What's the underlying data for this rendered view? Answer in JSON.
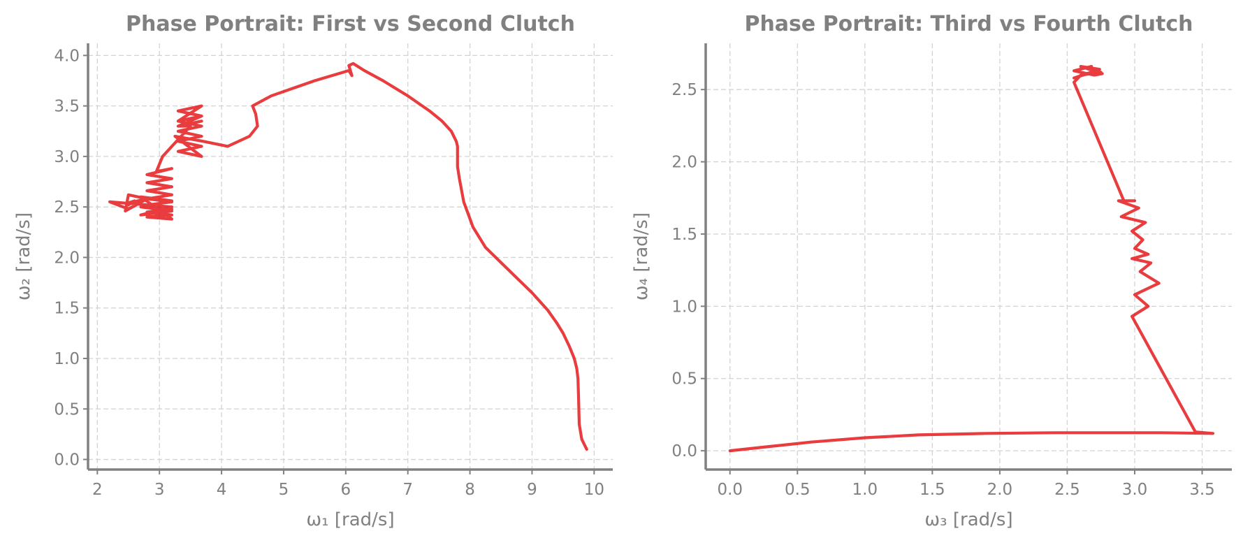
{
  "chart_data": [
    {
      "type": "line",
      "title": "Phase Portrait: First vs Second Clutch",
      "xlabel": "ω₁ [rad/s]",
      "ylabel": "ω₂ [rad/s]",
      "xlim": [
        1.85,
        10.3
      ],
      "ylim": [
        -0.1,
        4.12
      ],
      "xticks": [
        "2",
        "3",
        "4",
        "5",
        "6",
        "7",
        "8",
        "9",
        "10"
      ],
      "xtick_values": [
        2,
        3,
        4,
        5,
        6,
        7,
        8,
        9,
        10
      ],
      "yticks": [
        "0.0",
        "0.5",
        "1.0",
        "1.5",
        "2.0",
        "2.5",
        "3.0",
        "3.5",
        "4.0"
      ],
      "ytick_values": [
        0,
        0.5,
        1,
        1.5,
        2,
        2.5,
        3,
        3.5,
        4
      ],
      "grid": true,
      "color": "#e41a1c",
      "series": [
        {
          "x": [
            9.88,
            9.8,
            9.76,
            9.75,
            9.74,
            9.72,
            9.68,
            9.6,
            9.5,
            9.4,
            9.25,
            9.0,
            8.75,
            8.5,
            8.25,
            8.05,
            7.9,
            7.83,
            7.8,
            7.8,
            7.8,
            7.78,
            7.7,
            7.55,
            7.35,
            7.0,
            6.6,
            6.3,
            6.12,
            6.05,
            6.1,
            6.05,
            5.5,
            4.8,
            4.5,
            4.55,
            4.58,
            4.45,
            4.1,
            3.7,
            3.25,
            3.68,
            3.3,
            3.68,
            3.3,
            3.68,
            3.3,
            3.68,
            3.3,
            3.68,
            3.3,
            3.68,
            3.3,
            3.68,
            3.3,
            3.68,
            3.3,
            3.5,
            3.2,
            3.05,
            2.95,
            3.2,
            2.8,
            3.2,
            2.8,
            3.2,
            2.8,
            3.2,
            2.8,
            3.2,
            2.8,
            3.2,
            2.8,
            3.2,
            2.8,
            3.2,
            2.7,
            3.2,
            2.7,
            3.2,
            2.7,
            3.2,
            2.2,
            2.5,
            2.8,
            2.5,
            2.45,
            2.8,
            2.5,
            2.6,
            2.5
          ],
          "y": [
            0.1,
            0.2,
            0.35,
            0.6,
            0.8,
            0.9,
            1.0,
            1.12,
            1.25,
            1.35,
            1.48,
            1.65,
            1.8,
            1.95,
            2.1,
            2.3,
            2.55,
            2.78,
            2.9,
            3.0,
            3.1,
            3.15,
            3.25,
            3.35,
            3.45,
            3.6,
            3.75,
            3.85,
            3.92,
            3.9,
            3.8,
            3.85,
            3.75,
            3.6,
            3.5,
            3.42,
            3.3,
            3.2,
            3.1,
            3.15,
            3.2,
            3.0,
            3.05,
            3.1,
            3.15,
            3.2,
            3.25,
            3.3,
            3.35,
            3.4,
            3.45,
            3.5,
            3.35,
            3.4,
            3.3,
            3.35,
            3.3,
            3.3,
            3.1,
            3.0,
            2.85,
            2.88,
            2.82,
            2.78,
            2.74,
            2.7,
            2.66,
            2.62,
            2.58,
            2.55,
            2.52,
            2.48,
            2.45,
            2.42,
            2.4,
            2.38,
            2.6,
            2.56,
            2.5,
            2.46,
            2.42,
            2.5,
            2.55,
            2.48,
            2.58,
            2.62,
            2.46,
            2.58,
            2.54,
            2.56,
            2.52
          ]
        }
      ]
    },
    {
      "type": "line",
      "title": "Phase Portrait: Third vs Fourth Clutch",
      "xlabel": "ω₃ [rad/s]",
      "ylabel": "ω₄ [rad/s]",
      "xlim": [
        -0.18,
        3.72
      ],
      "ylim": [
        -0.13,
        2.82
      ],
      "xticks": [
        "0.0",
        "0.5",
        "1.0",
        "1.5",
        "2.0",
        "2.5",
        "3.0",
        "3.5"
      ],
      "xtick_values": [
        0,
        0.5,
        1,
        1.5,
        2,
        2.5,
        3,
        3.5
      ],
      "yticks": [
        "0.0",
        "0.5",
        "1.0",
        "1.5",
        "2.0",
        "2.5"
      ],
      "ytick_values": [
        0,
        0.5,
        1,
        1.5,
        2,
        2.5
      ],
      "grid": true,
      "color": "#e41a1c",
      "series": [
        {
          "x": [
            0.0,
            0.3,
            0.6,
            1.0,
            1.4,
            1.9,
            2.4,
            2.9,
            3.2,
            3.58,
            3.45,
            2.98,
            3.1,
            3.0,
            3.18,
            3.04,
            3.12,
            2.98,
            3.1,
            3.0,
            3.06,
            2.98,
            3.08,
            2.9,
            3.03,
            2.88,
            3.0,
            2.92,
            2.55,
            2.6,
            2.75,
            2.6,
            2.72,
            2.55,
            2.74,
            2.6,
            2.76,
            2.7,
            2.55,
            2.68
          ],
          "y": [
            0.0,
            0.03,
            0.06,
            0.09,
            0.11,
            0.12,
            0.125,
            0.125,
            0.125,
            0.12,
            0.13,
            0.93,
            1.0,
            1.08,
            1.16,
            1.24,
            1.3,
            1.33,
            1.36,
            1.4,
            1.46,
            1.52,
            1.58,
            1.62,
            1.68,
            1.73,
            1.73,
            1.73,
            2.55,
            2.6,
            2.62,
            2.66,
            2.63,
            2.58,
            2.64,
            2.66,
            2.61,
            2.6,
            2.63,
            2.66
          ]
        }
      ]
    }
  ]
}
